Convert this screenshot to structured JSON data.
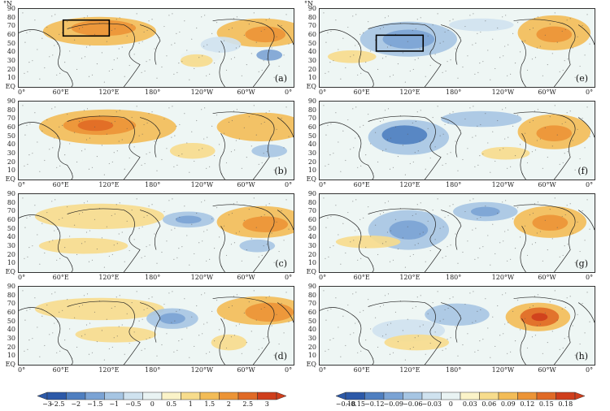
{
  "y_ticks": [
    "90",
    "80",
    "70",
    "60",
    "50",
    "40",
    "30",
    "20",
    "10",
    "EQ"
  ],
  "x_ticks": [
    "0°",
    "60°E",
    "120°E",
    "180°",
    "120°W",
    "60°W",
    "0°"
  ],
  "north_label": "°N",
  "panels_left": [
    {
      "label": "(a)",
      "pattern": "a"
    },
    {
      "label": "(b)",
      "pattern": "b"
    },
    {
      "label": "(c)",
      "pattern": "c"
    },
    {
      "label": "(d)",
      "pattern": "d"
    }
  ],
  "panels_right": [
    {
      "label": "(e)",
      "pattern": "e"
    },
    {
      "label": "(f)",
      "pattern": "f"
    },
    {
      "label": "(g)",
      "pattern": "g"
    },
    {
      "label": "(h)",
      "pattern": "h"
    }
  ],
  "colorbar_left": {
    "ticks": [
      "−3",
      "−2.5",
      "−2",
      "−1.5",
      "−1",
      "−0.5",
      "0",
      "0.5",
      "1",
      "1.5",
      "2",
      "2.5",
      "3"
    ],
    "colors": [
      "#2c59a8",
      "#4f7fc0",
      "#7ba3d4",
      "#a6c5e3",
      "#cfe2ef",
      "#e9f3f3",
      "#fbf3c8",
      "#f7dc8c",
      "#f3bc57",
      "#ec9436",
      "#e06a26",
      "#cf3e1c"
    ]
  },
  "colorbar_right": {
    "ticks": [
      "−0.18",
      "−0.15",
      "−0.12",
      "−0.09",
      "−0.06",
      "−0.03",
      "0",
      "0.03",
      "0.06",
      "0.09",
      "0.12",
      "0.15",
      "0.18"
    ],
    "colors": [
      "#2c59a8",
      "#4f7fc0",
      "#7ba3d4",
      "#a6c5e3",
      "#cfe2ef",
      "#e9f3f3",
      "#fbf3c8",
      "#f7dc8c",
      "#f3bc57",
      "#ec9436",
      "#e06a26",
      "#cf3e1c"
    ]
  }
}
